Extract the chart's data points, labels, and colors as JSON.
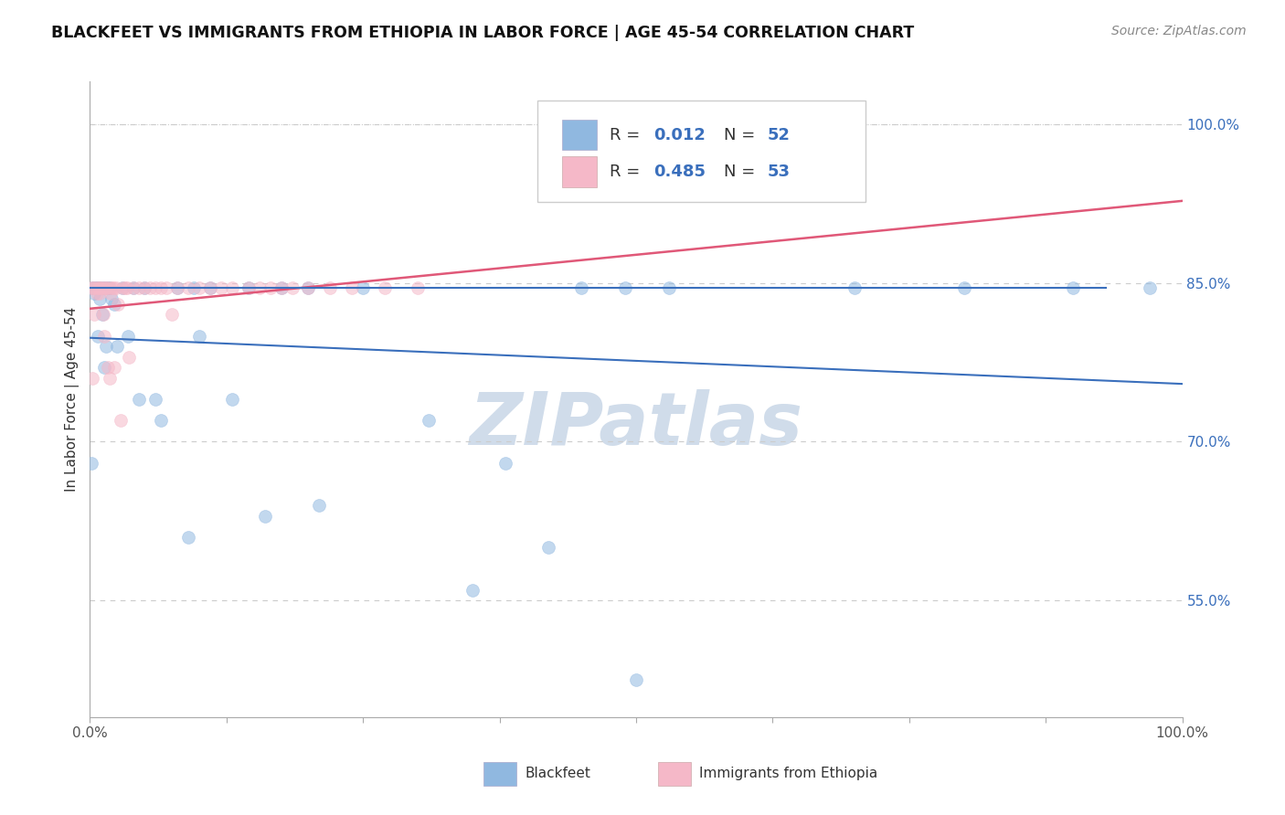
{
  "title": "BLACKFEET VS IMMIGRANTS FROM ETHIOPIA IN LABOR FORCE | AGE 45-54 CORRELATION CHART",
  "source": "Source: ZipAtlas.com",
  "ylabel": "In Labor Force | Age 45-54",
  "xlim": [
    0.0,
    1.0
  ],
  "ylim": [
    0.44,
    1.04
  ],
  "ytick_labels": [
    "55.0%",
    "70.0%",
    "85.0%",
    "100.0%"
  ],
  "ytick_values": [
    0.55,
    0.7,
    0.85,
    1.0
  ],
  "hline_blue_y": 0.845,
  "hline_blue_color": "#3a6fbc",
  "color_blue": "#90b8e0",
  "color_pink": "#f5b8c8",
  "scatter_alpha": 0.55,
  "marker_size": 100,
  "trendline_blue_color": "#3a6fbc",
  "trendline_pink_color": "#e05878",
  "legend_label1": "Blackfeet",
  "legend_label2": "Immigrants from Ethiopia",
  "blackfeet_x": [
    0.001,
    0.002,
    0.003,
    0.004,
    0.005,
    0.006,
    0.007,
    0.007,
    0.008,
    0.009,
    0.01,
    0.011,
    0.012,
    0.013,
    0.014,
    0.015,
    0.016,
    0.018,
    0.02,
    0.022,
    0.025,
    0.03,
    0.035,
    0.04,
    0.045,
    0.05,
    0.06,
    0.065,
    0.08,
    0.09,
    0.095,
    0.1,
    0.11,
    0.13,
    0.145,
    0.16,
    0.175,
    0.2,
    0.21,
    0.25,
    0.31,
    0.35,
    0.38,
    0.42,
    0.45,
    0.49,
    0.5,
    0.53,
    0.7,
    0.8,
    0.9,
    0.97
  ],
  "blackfeet_y": [
    0.68,
    0.845,
    0.845,
    0.84,
    0.845,
    0.845,
    0.845,
    0.8,
    0.845,
    0.835,
    0.845,
    0.82,
    0.845,
    0.77,
    0.845,
    0.79,
    0.845,
    0.845,
    0.835,
    0.83,
    0.79,
    0.845,
    0.8,
    0.845,
    0.74,
    0.845,
    0.74,
    0.72,
    0.845,
    0.61,
    0.845,
    0.8,
    0.845,
    0.74,
    0.845,
    0.63,
    0.845,
    0.845,
    0.64,
    0.845,
    0.72,
    0.56,
    0.68,
    0.6,
    0.845,
    0.845,
    0.475,
    0.845,
    0.845,
    0.845,
    0.845,
    0.845
  ],
  "ethiopia_x": [
    0.001,
    0.002,
    0.003,
    0.004,
    0.005,
    0.006,
    0.007,
    0.008,
    0.009,
    0.01,
    0.011,
    0.012,
    0.013,
    0.014,
    0.015,
    0.016,
    0.017,
    0.018,
    0.019,
    0.02,
    0.021,
    0.022,
    0.024,
    0.026,
    0.028,
    0.03,
    0.032,
    0.034,
    0.036,
    0.04,
    0.045,
    0.05,
    0.055,
    0.06,
    0.065,
    0.07,
    0.075,
    0.08,
    0.09,
    0.1,
    0.11,
    0.12,
    0.13,
    0.145,
    0.155,
    0.165,
    0.175,
    0.185,
    0.2,
    0.22,
    0.24,
    0.27,
    0.3
  ],
  "ethiopia_y": [
    0.845,
    0.76,
    0.845,
    0.82,
    0.845,
    0.84,
    0.845,
    0.845,
    0.84,
    0.845,
    0.845,
    0.82,
    0.8,
    0.845,
    0.845,
    0.77,
    0.845,
    0.76,
    0.84,
    0.845,
    0.845,
    0.77,
    0.845,
    0.83,
    0.72,
    0.845,
    0.845,
    0.845,
    0.78,
    0.845,
    0.845,
    0.845,
    0.845,
    0.845,
    0.845,
    0.845,
    0.82,
    0.845,
    0.845,
    0.845,
    0.845,
    0.845,
    0.845,
    0.845,
    0.845,
    0.845,
    0.845,
    0.845,
    0.845,
    0.845,
    0.845,
    0.845,
    0.845
  ],
  "watermark": "ZIPatlas",
  "watermark_color": "#d0dcea",
  "num_xticks": 9,
  "xtick_positions": [
    0.0,
    0.125,
    0.25,
    0.375,
    0.5,
    0.625,
    0.75,
    0.875,
    1.0
  ]
}
